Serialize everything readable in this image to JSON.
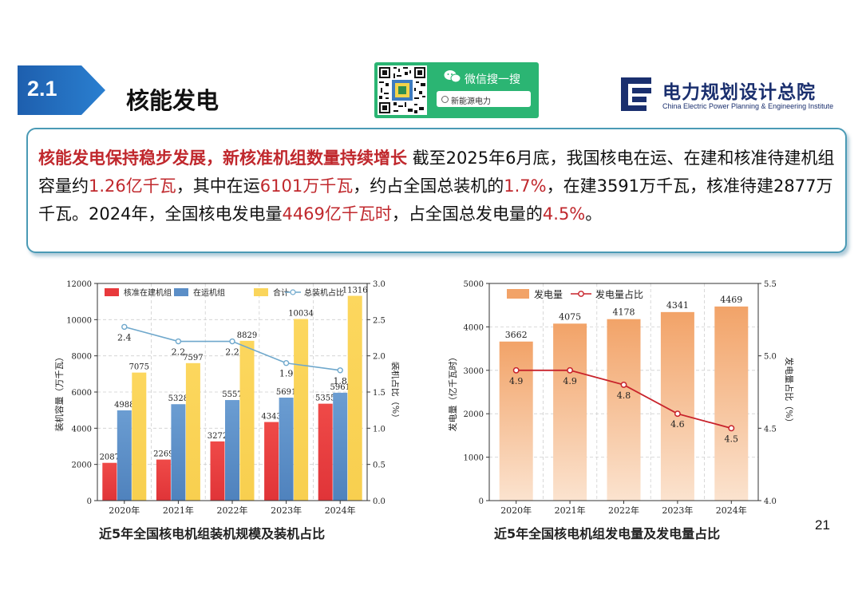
{
  "header": {
    "section_number": "2.1",
    "section_title": "核能发电",
    "wechat_label": "微信搜一搜",
    "wechat_search_text": "新能源电力",
    "logo_cn": "电力规划设计总院",
    "logo_en": "China Electric Power Planning & Engineering Institute"
  },
  "summary": {
    "headline": "核能发电保持稳步发展，新核准机组数量持续增长",
    "t1": "  截至2025年6月底，我国核电在运、在建和核准待建机组容量约",
    "v1": "1.26亿千瓦",
    "t2": "，其中在运",
    "v2": "6101万千瓦",
    "t3": "，约占全国总装机的",
    "v3": "1.7%",
    "t4": "，在建3591万千瓦，核准待建2877万千瓦。2024年，全国核电发电量",
    "v4": "4469亿千瓦时",
    "t5": "，占全国总发电量的",
    "v5": "4.5%",
    "t6": "。"
  },
  "colors": {
    "red": "#e8393c",
    "blue": "#5b8ec7",
    "yellow": "#fad55c",
    "line_blue": "#6fa8cc",
    "orange_top": "#f2a368",
    "orange_bottom": "#fbe3cf",
    "line_red": "#c8232b"
  },
  "chart_data": [
    {
      "type": "bar",
      "title": "近5年全国核电机组装机规模及装机占比",
      "categories": [
        "2020年",
        "2021年",
        "2022年",
        "2023年",
        "2024年"
      ],
      "series": [
        {
          "name": "核准在建机组",
          "values": [
            2087,
            2269,
            3272,
            4343,
            5355
          ]
        },
        {
          "name": "在运机组",
          "values": [
            4988,
            5328,
            5557,
            5691,
            5961
          ]
        },
        {
          "name": "合计",
          "values": [
            7075,
            7597,
            8829,
            10034,
            11316
          ]
        },
        {
          "name": "总装机占比",
          "type": "line",
          "axis": "right",
          "values": [
            2.4,
            2.2,
            2.2,
            1.9,
            1.8
          ]
        }
      ],
      "ylabel": "装机容量（万千瓦）",
      "y2label": "装机占比（%）",
      "ylim": [
        0,
        12000
      ],
      "y2lim": [
        0,
        3.0
      ],
      "yticks": [
        0,
        2000,
        4000,
        6000,
        8000,
        10000,
        12000
      ],
      "y2ticks": [
        "0.0",
        "0.5",
        "1.0",
        "1.5",
        "2.0",
        "2.5",
        "3.0"
      ],
      "legend_position": "top"
    },
    {
      "type": "bar",
      "title": "近5年全国核电机组发电量及发电量占比",
      "categories": [
        "2020年",
        "2021年",
        "2022年",
        "2023年",
        "2024年"
      ],
      "series": [
        {
          "name": "发电量",
          "values": [
            3662,
            4075,
            4178,
            4341,
            4469
          ]
        },
        {
          "name": "发电量占比",
          "type": "line",
          "axis": "right",
          "values": [
            4.9,
            4.9,
            4.8,
            4.6,
            4.5
          ]
        }
      ],
      "ylabel": "发电量（亿千瓦时）",
      "y2label": "发电量占比（%）",
      "ylim": [
        0,
        5000
      ],
      "y2lim": [
        4.0,
        5.5
      ],
      "yticks": [
        0,
        1000,
        2000,
        3000,
        4000,
        5000
      ],
      "y2ticks": [
        "4.0",
        "4.5",
        "5.0",
        "5.5"
      ],
      "legend_position": "top-left"
    }
  ],
  "page_number": "21"
}
